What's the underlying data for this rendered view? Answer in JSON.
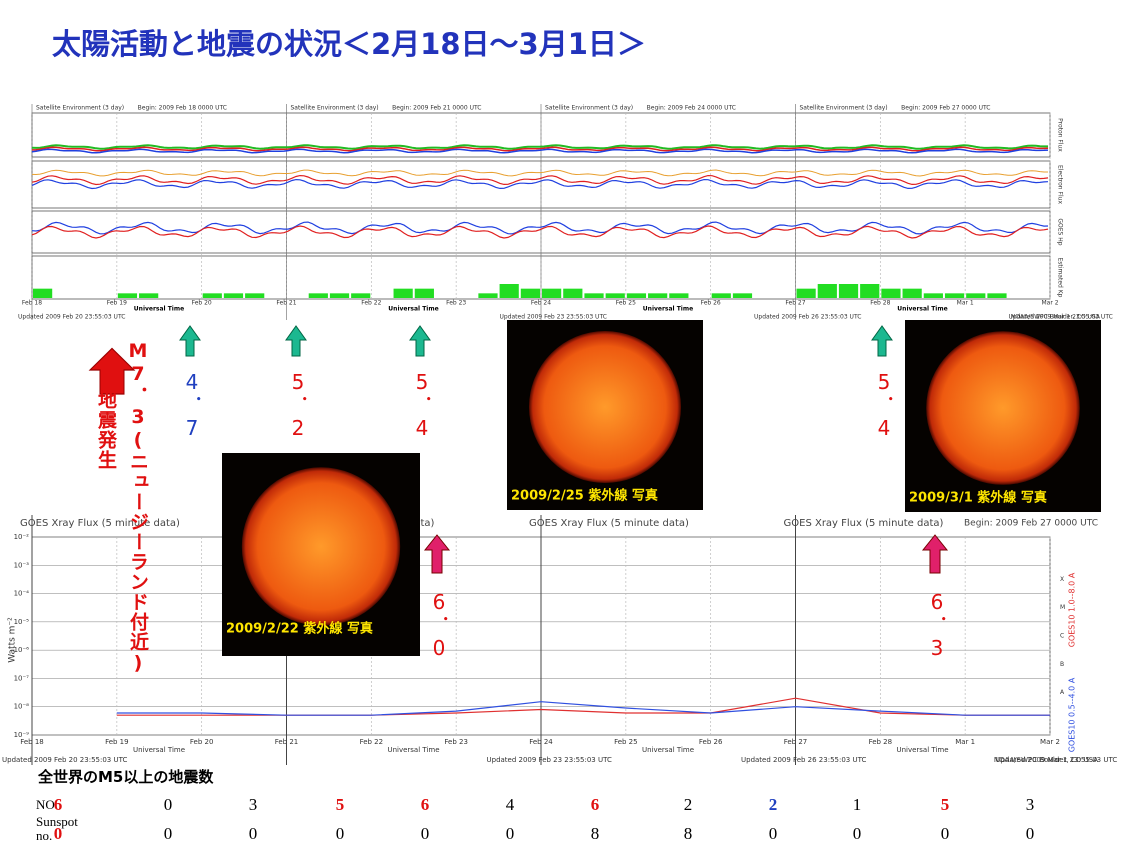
{
  "title": "太陽活動と地震の状況＜2月18日～3月1日＞",
  "satellite_panel": {
    "headers": [
      {
        "title": "Satellite Environment (3 day)",
        "begin": "Begin: 2009 Feb 18 0000 UTC"
      },
      {
        "title": "Satellite Environment (3 day)",
        "begin": "Begin: 2009 Feb 21 0000 UTC"
      },
      {
        "title": "Satellite Environment (3 day)",
        "begin": "Begin: 2009 Feb 24 0000 UTC"
      },
      {
        "title": "Satellite Environment (3 day)",
        "begin": "Begin: 2009 Feb 27 0000 UTC"
      }
    ],
    "days": [
      "Feb 18",
      "Feb 19",
      "Feb 20",
      "Feb 21",
      "Feb 22",
      "Feb 23",
      "Feb 24",
      "Feb 25",
      "Feb 26",
      "Feb 27",
      "Feb 28",
      "Mar 1",
      "Mar 2"
    ],
    "xlabel": "Universal Time",
    "footers": [
      "Updated 2009 Feb 20 23:55:03 UTC",
      "Updated 2009 Feb 23 23:55:03 UTC",
      "Updated 2009 Feb 26 23:55:03 UTC",
      "Updated 2009 Mar 1 23:55:03 UTC"
    ],
    "source": "NOAA/SWPC Boulder, CO USA",
    "panel_labels": [
      "Proton Flux",
      "Electron Flux",
      "GOES Hp",
      "Estimated Kp"
    ],
    "kp": {
      "ylim": [
        0,
        9
      ],
      "color": "#22dd22",
      "values": [
        2,
        0,
        0,
        0,
        1,
        1,
        0,
        0,
        1,
        1,
        1,
        0,
        0,
        1,
        1,
        1,
        0,
        2,
        2,
        0,
        0,
        1,
        3,
        2,
        2,
        2,
        1,
        1,
        1,
        1,
        1,
        0,
        1,
        1,
        0,
        0,
        2,
        3,
        3,
        3,
        2,
        2,
        1,
        1,
        1,
        1,
        0,
        0
      ]
    }
  },
  "events": [
    {
      "label": "M7．3(ニュージーランド付近)",
      "color": "#e01010"
    },
    {
      "label": "地震発生",
      "color": "#e01010"
    },
    {
      "label": "4．7",
      "color": "#2040c0"
    },
    {
      "label": "5．2",
      "color": "#e01010"
    },
    {
      "label": "5．4",
      "color": "#e01010"
    },
    {
      "label": "5．4",
      "color": "#e01010"
    },
    {
      "label": "6．0",
      "color": "#e01010"
    },
    {
      "label": "6．3",
      "color": "#e01010"
    }
  ],
  "photos": [
    "2009/2/22 紫外線 写真",
    "2009/2/25 紫外線 写真",
    "2009/3/1 紫外線 写真"
  ],
  "xray_panel": {
    "title": "GOES Xray Flux (5 minute data)",
    "begin": "Begin: 2009 Feb 27 0000 UTC",
    "ylabel": "Watts m⁻²",
    "ylim": [
      1e-09,
      0.01
    ],
    "log": true,
    "yticks": [
      {
        "value": 1e-09,
        "label": "10⁻⁹"
      },
      {
        "value": 1e-08,
        "label": "10⁻⁸"
      },
      {
        "value": 1e-07,
        "label": "10⁻⁷"
      },
      {
        "value": 1e-06,
        "label": "10⁻⁶"
      },
      {
        "value": 1e-05,
        "label": "10⁻⁵"
      },
      {
        "value": 0.0001,
        "label": "10⁻⁴"
      },
      {
        "value": 0.001,
        "label": "10⁻³"
      },
      {
        "value": 0.01,
        "label": "10⁻²"
      }
    ],
    "classes": [
      "A",
      "B",
      "C",
      "M",
      "X"
    ],
    "series": [
      {
        "name": "GOES10 1.0--8.0 A",
        "color": "#e03030",
        "values": [
          null,
          5e-09,
          5e-09,
          5e-09,
          5e-09,
          6e-09,
          8e-09,
          6e-09,
          6e-09,
          2e-08,
          6e-09,
          5e-09,
          5e-09
        ]
      },
      {
        "name": "GOES10 0.5--4.0 A",
        "color": "#3050e0",
        "values": [
          null,
          6e-09,
          6e-09,
          5e-09,
          5e-09,
          7e-09,
          1.5e-08,
          9e-09,
          6e-09,
          1e-08,
          7e-09,
          5e-09,
          5e-09
        ]
      }
    ]
  },
  "table": {
    "title": "全世界のM5以上の地震数",
    "rows": [
      {
        "label": "NO",
        "values": [
          "6",
          "0",
          "3",
          "5",
          "6",
          "4",
          "6",
          "2",
          "2",
          "1",
          "5",
          "3"
        ],
        "colors": [
          "#e01010",
          "#000",
          "#000",
          "#e01010",
          "#e01010",
          "#000",
          "#e01010",
          "#000",
          "#2040c0",
          "#000",
          "#e01010",
          "#000"
        ]
      },
      {
        "label": "Sunspot no.",
        "values": [
          "0",
          "0",
          "0",
          "0",
          "0",
          "0",
          "8",
          "8",
          "0",
          "0",
          "0",
          "0"
        ],
        "colors": [
          "#e01010",
          "#000",
          "#000",
          "#000",
          "#000",
          "#000",
          "#000",
          "#000",
          "#000",
          "#000",
          "#000",
          "#000"
        ]
      }
    ]
  }
}
